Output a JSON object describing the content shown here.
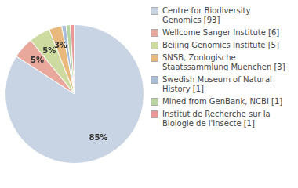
{
  "chart_data": {
    "type": "pie",
    "categories": [
      "Centre for Biodiversity\nGenomics [93]",
      "Wellcome Sanger Institute [6]",
      "Beijing Genomics Institute [5]",
      "SNSB, Zoologische\nStaatssammlung Muenchen [3]",
      "Swedish Museum of Natural\nHistory [1]",
      "Mined from GenBank, NCBI [1]",
      "Institut de Recherche sur la\nBiologie de l'Insecte [1]"
    ],
    "values": [
      85,
      5,
      5,
      3,
      1,
      1,
      1
    ],
    "value_labels": [
      "85%",
      "5%",
      "5%",
      "3%",
      null,
      null,
      null
    ],
    "colors": [
      "#c8d4e3",
      "#e8a89c",
      "#cddba0",
      "#e8b87c",
      "#a8bcd8",
      "#b8d4a0",
      "#e89898"
    ],
    "data_labels": true,
    "legend": "right"
  }
}
